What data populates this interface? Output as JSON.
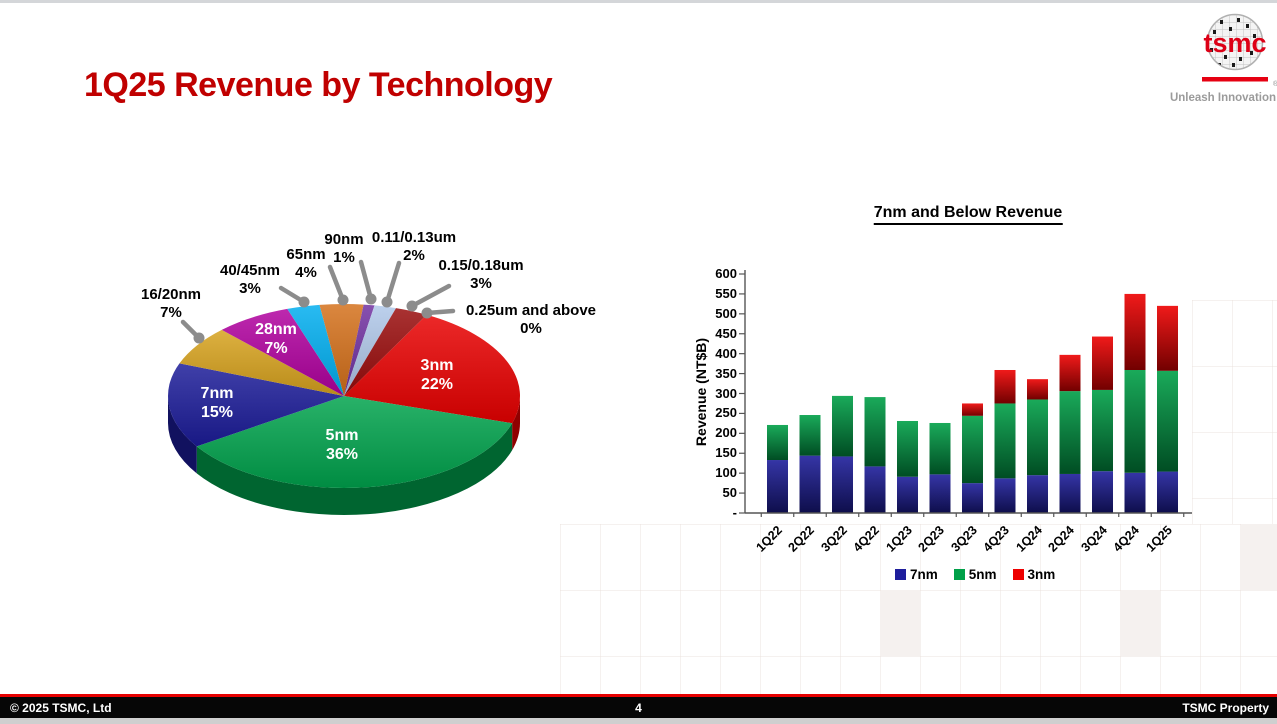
{
  "slide": {
    "title": "1Q25 Revenue by Technology",
    "page_number": "4",
    "footer_left": "© 2025 TSMC, Ltd",
    "footer_right": "TSMC Property",
    "logo": {
      "text": "tsmc",
      "registered": "®",
      "tagline": "Unleash Innovation"
    }
  },
  "chart_data": [
    {
      "type": "pie",
      "style": "3d",
      "start_angle_deg": 28,
      "unit": "%",
      "slices": [
        {
          "label": "3nm",
          "value": 22,
          "pct": "22%",
          "color": "#e80000",
          "label_inside": true
        },
        {
          "label": "5nm",
          "value": 36,
          "pct": "36%",
          "color": "#00a34d",
          "label_inside": true
        },
        {
          "label": "7nm",
          "value": 15,
          "pct": "15%",
          "color": "#1c1c99",
          "label_inside": true
        },
        {
          "label": "16/20nm",
          "value": 7,
          "pct": "7%",
          "color": "#d7a21d",
          "label_inside": false
        },
        {
          "label": "28nm",
          "value": 7,
          "pct": "7%",
          "color": "#b1009f",
          "label_inside": true
        },
        {
          "label": "40/45nm",
          "value": 3,
          "pct": "3%",
          "color": "#00aeef",
          "label_inside": false
        },
        {
          "label": "65nm",
          "value": 4,
          "pct": "4%",
          "color": "#d4701a",
          "label_inside": false
        },
        {
          "label": "90nm",
          "value": 1,
          "pct": "1%",
          "color": "#7030a0",
          "label_inside": false
        },
        {
          "label": "0.11/0.13um",
          "value": 2,
          "pct": "2%",
          "color": "#afc7e8",
          "label_inside": false
        },
        {
          "label": "0.15/0.18um",
          "value": 3,
          "pct": "3%",
          "color": "#990b0b",
          "label_inside": false
        },
        {
          "label": "0.25um and above",
          "value": 0,
          "pct": "0%",
          "color": "#c00000",
          "label_inside": false
        }
      ]
    },
    {
      "type": "bar",
      "stacked": true,
      "title": "7nm and Below Revenue",
      "ylabel": "Revenue (NT$B)",
      "ylim": [
        0,
        600
      ],
      "ytick_step": 50,
      "ytick_labels": [
        "-",
        "50",
        "100",
        "150",
        "200",
        "250",
        "300",
        "350",
        "400",
        "450",
        "500",
        "550",
        "600"
      ],
      "grid": false,
      "legend_position": "bottom",
      "categories": [
        "1Q22",
        "2Q22",
        "3Q22",
        "4Q22",
        "1Q23",
        "2Q23",
        "3Q23",
        "4Q23",
        "1Q24",
        "2Q24",
        "3Q24",
        "4Q24",
        "1Q25"
      ],
      "series": [
        {
          "name": "7nm",
          "color": "#1e1e9c",
          "values": [
            133,
            144,
            142,
            117,
            91,
            97,
            75,
            87,
            95,
            98,
            105,
            101,
            104
          ]
        },
        {
          "name": "5nm",
          "color": "#00a048",
          "values": [
            88,
            102,
            152,
            174,
            140,
            129,
            169,
            188,
            190,
            208,
            204,
            258,
            253
          ]
        },
        {
          "name": "3nm",
          "color": "#ee0000",
          "values": [
            0,
            0,
            0,
            0,
            0,
            0,
            31,
            84,
            51,
            91,
            134,
            191,
            163
          ]
        }
      ]
    }
  ]
}
